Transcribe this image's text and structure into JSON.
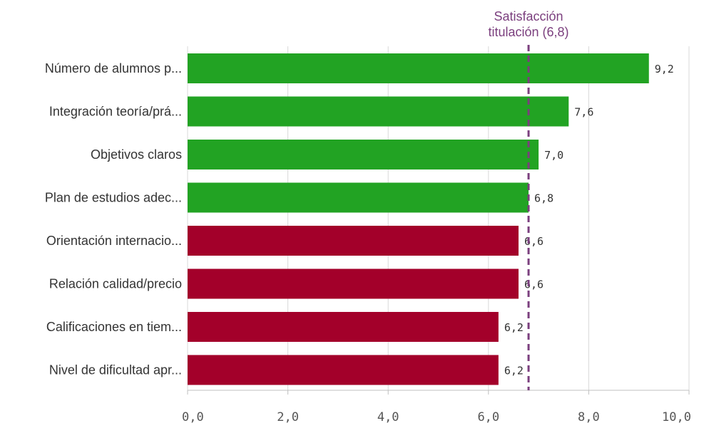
{
  "chart_data": {
    "type": "bar",
    "orientation": "horizontal",
    "categories": [
      "Número de alumnos p...",
      "Integración teoría/prá...",
      "Objetivos claros",
      "Plan de estudios adec...",
      "Orientación internacio...",
      "Relación calidad/precio",
      "Calificaciones en tiem...",
      "Nivel de dificultad apr..."
    ],
    "values": [
      9.2,
      7.6,
      7.0,
      6.8,
      6.6,
      6.6,
      6.2,
      6.2
    ],
    "value_labels": [
      "9,2",
      "7,6",
      "7,0",
      "6,8",
      "6,6",
      "6,6",
      "6,2",
      "6,2"
    ],
    "bar_colors": [
      "#22a323",
      "#22a323",
      "#22a323",
      "#22a323",
      "#a3002a",
      "#a3002a",
      "#a3002a",
      "#a3002a"
    ],
    "colors": {
      "above": "#22a323",
      "below": "#a3002a",
      "reference": "#7b3f7e",
      "grid": "#d9d9d9"
    },
    "xlim": [
      0,
      10
    ],
    "x_ticks": [
      0,
      2,
      4,
      6,
      8,
      10
    ],
    "x_tick_labels": [
      "0,0",
      "2,0",
      "4,0",
      "6,0",
      "8,0",
      "10,0"
    ],
    "grid": true,
    "reference_line": {
      "value": 6.8,
      "label_lines": [
        "Satisfacción",
        "titulación (6,8)"
      ],
      "style": "dashed"
    },
    "title": "",
    "xlabel": "",
    "ylabel": ""
  }
}
